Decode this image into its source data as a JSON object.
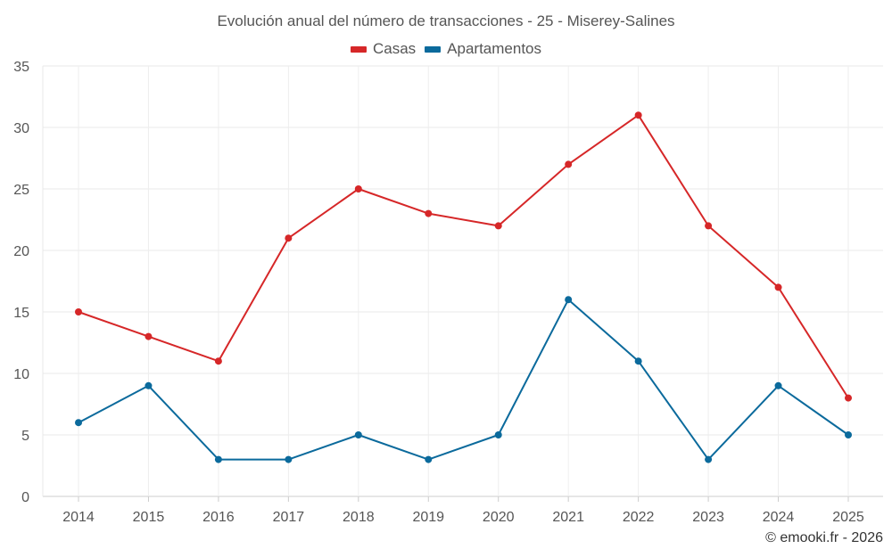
{
  "chart_data": {
    "type": "line",
    "title": "Evolución anual del número de transacciones - 25 - Miserey-Salines",
    "categories": [
      "2014",
      "2015",
      "2016",
      "2017",
      "2018",
      "2019",
      "2020",
      "2021",
      "2022",
      "2023",
      "2024",
      "2025"
    ],
    "series": [
      {
        "name": "Casas",
        "color": "#d62728",
        "values": [
          15,
          13,
          11,
          21,
          25,
          23,
          22,
          27,
          31,
          22,
          17,
          8
        ]
      },
      {
        "name": "Apartamentos",
        "color": "#0b6a9c",
        "values": [
          6,
          9,
          3,
          3,
          5,
          3,
          5,
          16,
          11,
          3,
          9,
          5
        ]
      }
    ],
    "ylim": [
      0,
      35
    ],
    "yticks": [
      0,
      5,
      10,
      15,
      20,
      25,
      30,
      35
    ],
    "xlabel": "",
    "ylabel": "",
    "grid": true,
    "legend_position": "top-center"
  },
  "footer": {
    "credit": "© emooki.fr - 2026"
  }
}
